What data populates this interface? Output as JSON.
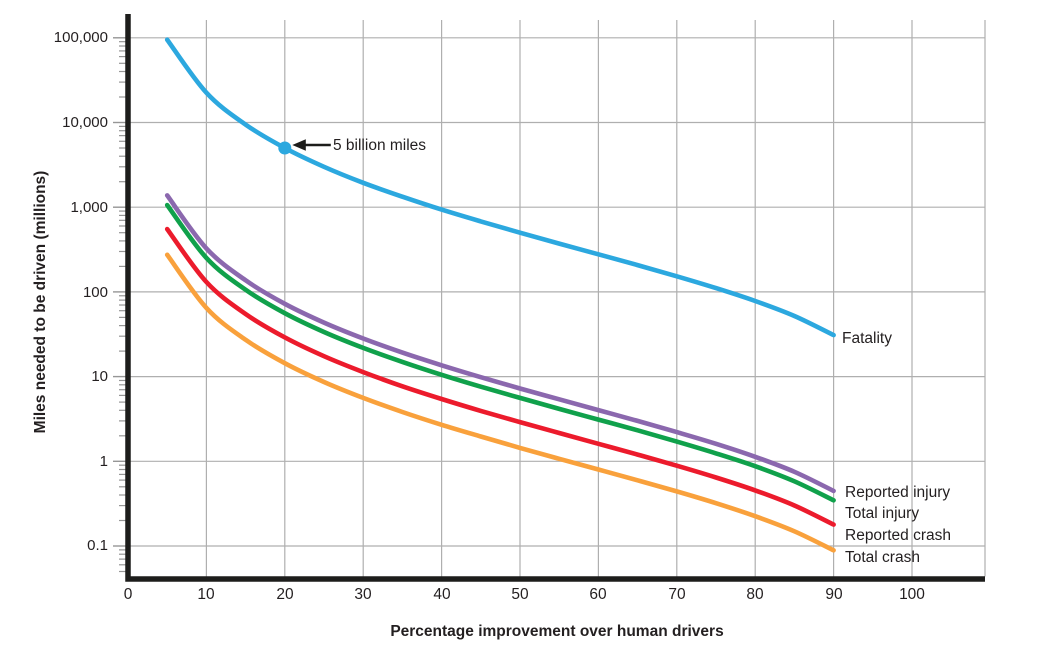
{
  "chart_data": {
    "type": "line",
    "title": "",
    "xlabel": "Percentage improvement over human drivers",
    "ylabel": "Miles needed to be driven (millions)",
    "grid": true,
    "legend_position": "line-end-labels",
    "x_axis": {
      "min": 0,
      "max": 110,
      "tick_values": [
        0,
        10,
        20,
        30,
        40,
        50,
        60,
        70,
        80,
        90,
        100
      ],
      "tick_labels": [
        "0",
        "10",
        "20",
        "30",
        "40",
        "50",
        "60",
        "70",
        "80",
        "90",
        "100"
      ]
    },
    "y_axis": {
      "scale": "log",
      "min": 0.1,
      "max": 100000,
      "tick_values": [
        100000,
        10000,
        1000,
        100,
        10,
        1,
        0.1
      ],
      "tick_labels": [
        "100,000",
        "10,000",
        "1,000",
        "100",
        "10",
        "1",
        "0.1"
      ]
    },
    "x": [
      5,
      10,
      15,
      20,
      25,
      30,
      35,
      40,
      45,
      50,
      55,
      60,
      65,
      70,
      75,
      80,
      85,
      90
    ],
    "series": [
      {
        "name": "Fatality",
        "color": "#2CA8DF",
        "values": [
          95000,
          22500,
          9440,
          5000,
          3000,
          1940,
          1330,
          938,
          679,
          500,
          372,
          278,
          207,
          153,
          111,
          78.1,
          51.9,
          30.9
        ]
      },
      {
        "name": "Reported injury",
        "color": "#8B68AE",
        "values": [
          1380,
          326,
          137,
          72.4,
          43.4,
          28.2,
          19.2,
          13.6,
          9.83,
          7.24,
          5.39,
          4.02,
          3.0,
          2.21,
          1.61,
          1.13,
          0.752,
          0.447
        ]
      },
      {
        "name": "Total injury",
        "color": "#10A14B",
        "values": [
          1060,
          252,
          106,
          56.0,
          33.6,
          21.8,
          14.9,
          10.5,
          7.6,
          5.6,
          4.16,
          3.11,
          2.32,
          1.71,
          1.24,
          0.875,
          0.581,
          0.346
        ]
      },
      {
        "name": "Reported crash",
        "color": "#EC1B2C",
        "values": [
          551,
          131,
          54.8,
          29.0,
          17.4,
          11.3,
          7.69,
          5.44,
          3.94,
          2.9,
          2.16,
          1.61,
          1.2,
          0.887,
          0.644,
          0.453,
          0.301,
          0.179
        ]
      },
      {
        "name": "Total crash",
        "color": "#F9A13C",
        "values": [
          274,
          64.8,
          27.2,
          14.4,
          8.64,
          5.6,
          3.82,
          2.7,
          1.96,
          1.44,
          1.07,
          0.8,
          0.596,
          0.441,
          0.32,
          0.225,
          0.149,
          0.0889
        ]
      }
    ],
    "annotation": {
      "text": "5 billion miles",
      "x": 20,
      "y": 5000
    }
  },
  "colors": {
    "grid": "#AFAFAF",
    "minor_tick": "#969696",
    "axis": "#1D1D1B",
    "text": "#231F20",
    "background": "#FFFFFF"
  }
}
